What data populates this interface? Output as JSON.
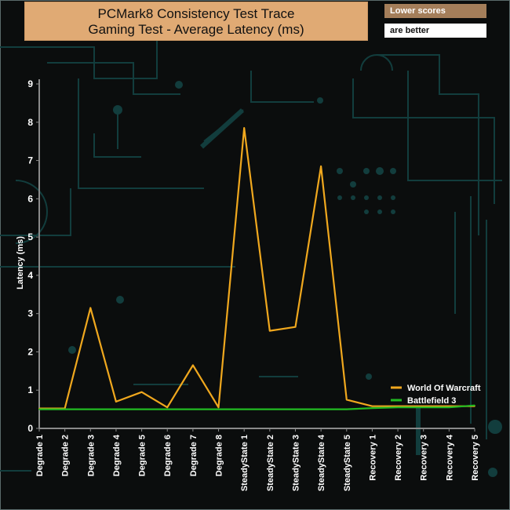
{
  "header": {
    "title_line1": "PCMark8 Consistency Test Trace",
    "title_line2": "Gaming Test -  Average Latency (ms)",
    "note_line1": "Lower scores",
    "note_line2": "are better"
  },
  "colors": {
    "series_world_of_warcraft": "#f0a81e",
    "series_battlefield_3": "#22bb22",
    "axis": "#8a8a8a",
    "text": "#ffffff",
    "title_bg": "#e0aa74",
    "note_bg": "#a47e5a",
    "background": "#0b0d0d",
    "circuit": "#123d3d"
  },
  "chart_data": {
    "type": "line",
    "title": "PCMark8 Consistency Test Trace Gaming Test -  Average Latency (ms)",
    "xlabel": "",
    "ylabel": "Latency (ms)",
    "ylim": [
      0,
      9
    ],
    "yticks": [
      "0",
      "1",
      "2",
      "3",
      "4",
      "5",
      "6",
      "7",
      "8",
      "9"
    ],
    "grid": false,
    "legend_position": "bottom-right",
    "categories": [
      "Degrade 1",
      "Degrade 2",
      "Degrade 3",
      "Degrade 4",
      "Degrade 5",
      "Degrade 6",
      "Degrade 7",
      "Degrade 8",
      "SteadyState 1",
      "SteadyState 2",
      "SteadyState 3",
      "SteadyState 4",
      "SteadyState 5",
      "Recovery 1",
      "Recovery 2",
      "Recovery 3",
      "Recovery 4",
      "Recovery 5"
    ],
    "series": [
      {
        "name": "World Of Warcraft",
        "values": [
          0.52,
          0.52,
          3.15,
          0.7,
          0.95,
          0.55,
          1.65,
          0.55,
          7.85,
          2.55,
          2.65,
          6.85,
          0.75,
          0.58,
          0.58,
          0.58,
          0.58,
          0.58
        ]
      },
      {
        "name": "Battlefield 3",
        "values": [
          0.5,
          0.5,
          0.5,
          0.5,
          0.5,
          0.5,
          0.5,
          0.5,
          0.5,
          0.5,
          0.5,
          0.5,
          0.5,
          0.53,
          0.55,
          0.55,
          0.55,
          0.6
        ]
      }
    ]
  }
}
